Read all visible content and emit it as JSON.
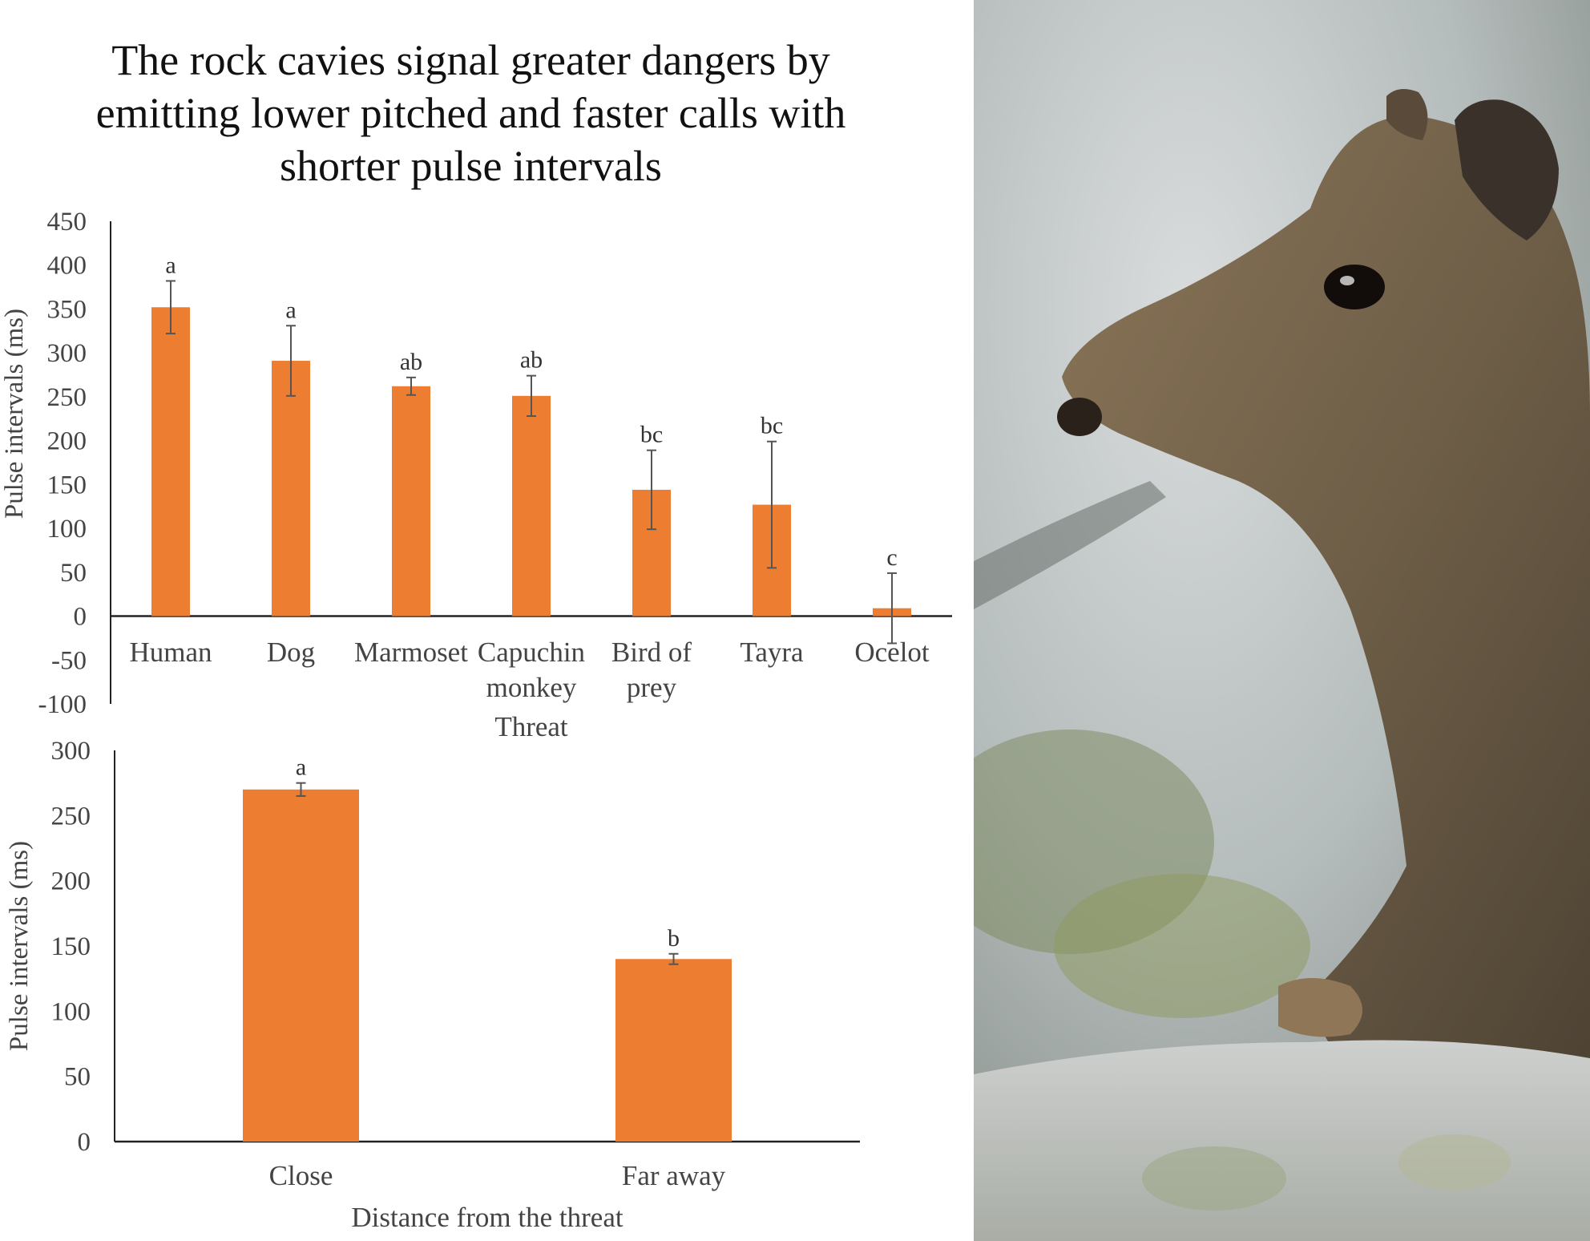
{
  "title_lines": [
    "The rock cavies signal greater dangers by",
    "emitting lower pitched and faster calls with",
    "shorter pulse intervals"
  ],
  "chart_data": [
    {
      "type": "bar",
      "categories": [
        "Human",
        "Dog",
        "Marmoset",
        "Capuchin monkey",
        "Bird of prey",
        "Tayra",
        "Ocelot"
      ],
      "category_label_lines": [
        [
          "Human"
        ],
        [
          "Dog"
        ],
        [
          "Marmoset"
        ],
        [
          "Capuchin",
          "monkey"
        ],
        [
          "Bird of",
          "prey"
        ],
        [
          "Tayra"
        ],
        [
          "Ocelot"
        ]
      ],
      "values": [
        352,
        291,
        262,
        251,
        144,
        127,
        9
      ],
      "error": [
        30,
        40,
        10,
        23,
        45,
        72,
        40
      ],
      "significance_labels": [
        "a",
        "a",
        "ab",
        "ab",
        "bc",
        "bc",
        "c"
      ],
      "xlabel": "Threat",
      "ylabel": "Pulse intervals (ms)",
      "ylim": [
        -100,
        450
      ],
      "yticks": [
        -100,
        -50,
        0,
        50,
        100,
        150,
        200,
        250,
        300,
        350,
        400,
        450
      ],
      "grid": false,
      "bar_color": "#ed7d31"
    },
    {
      "type": "bar",
      "categories": [
        "Close",
        "Far away"
      ],
      "values": [
        270,
        140
      ],
      "error": [
        5,
        4
      ],
      "significance_labels": [
        "a",
        "b"
      ],
      "xlabel": "Distance from the threat",
      "ylabel": "Pulse intervals (ms)",
      "ylim": [
        0,
        300
      ],
      "yticks": [
        0,
        50,
        100,
        150,
        200,
        250,
        300
      ],
      "grid": false,
      "bar_color": "#ed7d31"
    }
  ],
  "photo": {
    "subject": "rock-cavy-photo"
  }
}
